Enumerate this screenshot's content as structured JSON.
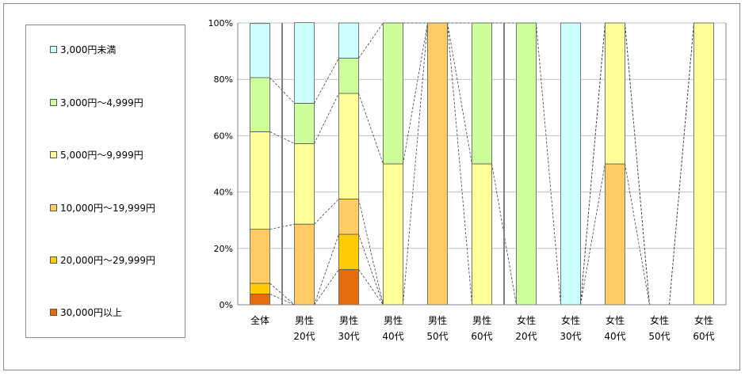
{
  "legend": {
    "items": [
      {
        "label": "3,000円未満",
        "color": "#ccffff"
      },
      {
        "label": "3,000円～4,999円",
        "color": "#ccff99"
      },
      {
        "label": "5,000円～9,999円",
        "color": "#ffff99"
      },
      {
        "label": "10,000円～19,999円",
        "color": "#ffcc66"
      },
      {
        "label": "20,000円～29,999円",
        "color": "#ffcc00"
      },
      {
        "label": "30,000円以上",
        "color": "#e46c0a"
      }
    ]
  },
  "chart_data": {
    "type": "bar",
    "stacked": true,
    "percent_axis": true,
    "ylim": [
      0,
      100
    ],
    "yticks": [
      "0%",
      "20%",
      "40%",
      "60%",
      "80%",
      "100%"
    ],
    "grid": true,
    "legend_position": "left",
    "categories": [
      {
        "line1": "全体",
        "line2": ""
      },
      {
        "line1": "男性",
        "line2": "20代"
      },
      {
        "line1": "男性",
        "line2": "30代"
      },
      {
        "line1": "男性",
        "line2": "40代"
      },
      {
        "line1": "男性",
        "line2": "50代"
      },
      {
        "line1": "男性",
        "line2": "60代"
      },
      {
        "line1": "女性",
        "line2": "20代"
      },
      {
        "line1": "女性",
        "line2": "30代"
      },
      {
        "line1": "女性",
        "line2": "40代"
      },
      {
        "line1": "女性",
        "line2": "50代"
      },
      {
        "line1": "女性",
        "line2": "60代"
      }
    ],
    "series": [
      {
        "name": "30,000円以上",
        "color": "#e46c0a",
        "values": [
          3.8,
          0,
          12.5,
          0,
          0,
          0,
          0,
          0,
          0,
          0,
          0
        ]
      },
      {
        "name": "20,000円～29,999円",
        "color": "#ffcc00",
        "values": [
          3.8,
          0,
          12.5,
          0,
          0,
          0,
          0,
          0,
          0,
          0,
          0
        ]
      },
      {
        "name": "10,000円～19,999円",
        "color": "#ffcc66",
        "values": [
          19.2,
          28.6,
          12.5,
          0,
          100,
          0,
          0,
          0,
          50,
          0,
          0
        ]
      },
      {
        "name": "5,000円～9,999円",
        "color": "#ffff99",
        "values": [
          34.6,
          28.6,
          37.5,
          50,
          0,
          50,
          0,
          0,
          50,
          0,
          100
        ]
      },
      {
        "name": "3,000円～4,999円",
        "color": "#ccff99",
        "values": [
          19.2,
          14.3,
          12.5,
          50,
          0,
          50,
          100,
          0,
          0,
          0,
          0
        ]
      },
      {
        "name": "3,000円未満",
        "color": "#ccffff",
        "values": [
          19.2,
          28.6,
          12.5,
          0,
          0,
          0,
          0,
          100,
          0,
          0,
          0
        ]
      }
    ],
    "group_separators_after": [
      0,
      5
    ]
  }
}
